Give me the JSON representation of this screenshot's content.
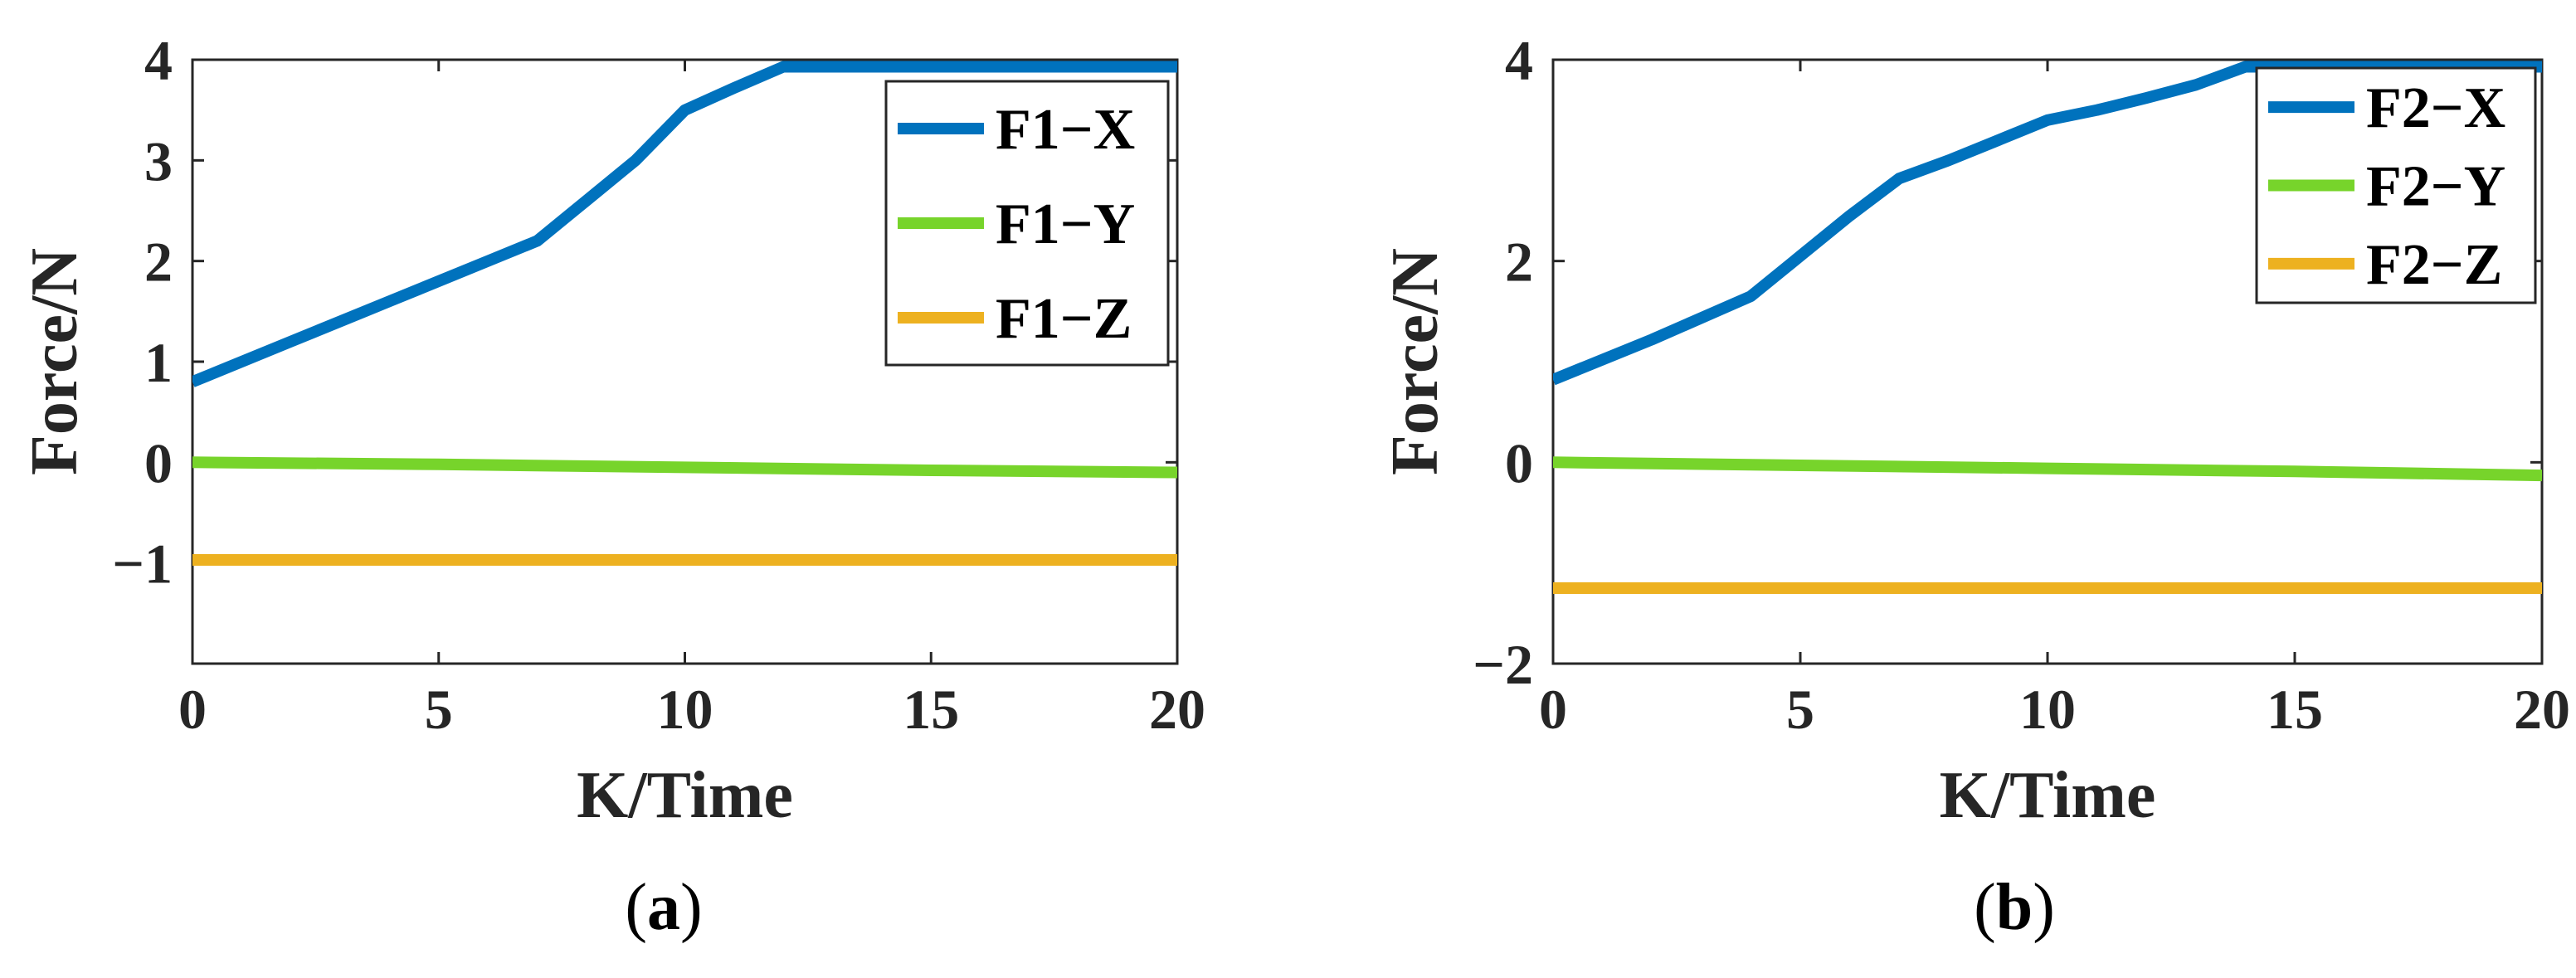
{
  "chart_data": [
    {
      "type": "line",
      "caption": "a",
      "xlabel": "K/Time",
      "ylabel": "Force/N",
      "xlim": [
        0,
        20
      ],
      "ylim": [
        -2,
        4
      ],
      "xticks": [
        0,
        5,
        10,
        15,
        20
      ],
      "yticks": [
        -1,
        0,
        1,
        2,
        3,
        4
      ],
      "ytick_labels": [
        "−1",
        "0",
        "1",
        "2",
        "3",
        "4"
      ],
      "legend": "top-right",
      "series": [
        {
          "name": "F1−X",
          "color": "#0072BD",
          "x": [
            0,
            2,
            4,
            6,
            7,
            8,
            9,
            10,
            11,
            12,
            14,
            16,
            18,
            20
          ],
          "y": [
            0.8,
            1.2,
            1.6,
            2.0,
            2.2,
            2.6,
            3.0,
            3.5,
            3.72,
            3.93,
            3.93,
            3.93,
            3.93,
            3.93
          ]
        },
        {
          "name": "F1−Y",
          "color": "#77D42B",
          "x": [
            0,
            5,
            10,
            15,
            20
          ],
          "y": [
            0.0,
            -0.02,
            -0.05,
            -0.08,
            -0.1
          ]
        },
        {
          "name": "F1−Z",
          "color": "#EDB120",
          "x": [
            0,
            20
          ],
          "y": [
            -0.97,
            -0.97
          ]
        }
      ]
    },
    {
      "type": "line",
      "caption": "b",
      "xlabel": "K/Time",
      "ylabel": "Force/N",
      "xlim": [
        0,
        20
      ],
      "ylim": [
        -2,
        4
      ],
      "xticks": [
        0,
        5,
        10,
        15,
        20
      ],
      "yticks": [
        -2,
        0,
        2,
        4
      ],
      "ytick_labels": [
        "−2",
        "0",
        "2",
        "4"
      ],
      "legend": "top-right",
      "series": [
        {
          "name": "F2−X",
          "color": "#0072BD",
          "x": [
            0,
            2,
            4,
            5,
            6,
            7,
            8,
            9,
            10,
            11,
            12,
            13,
            14,
            16,
            18,
            20
          ],
          "y": [
            0.82,
            1.22,
            1.65,
            2.05,
            2.45,
            2.82,
            3.0,
            3.2,
            3.4,
            3.5,
            3.62,
            3.75,
            3.93,
            3.93,
            3.93,
            3.93
          ]
        },
        {
          "name": "F2−Y",
          "color": "#77D42B",
          "x": [
            0,
            5,
            10,
            15,
            20
          ],
          "y": [
            0.0,
            -0.03,
            -0.06,
            -0.09,
            -0.13
          ]
        },
        {
          "name": "F2−Z",
          "color": "#EDB120",
          "x": [
            0,
            20
          ],
          "y": [
            -1.25,
            -1.25
          ]
        }
      ]
    }
  ]
}
